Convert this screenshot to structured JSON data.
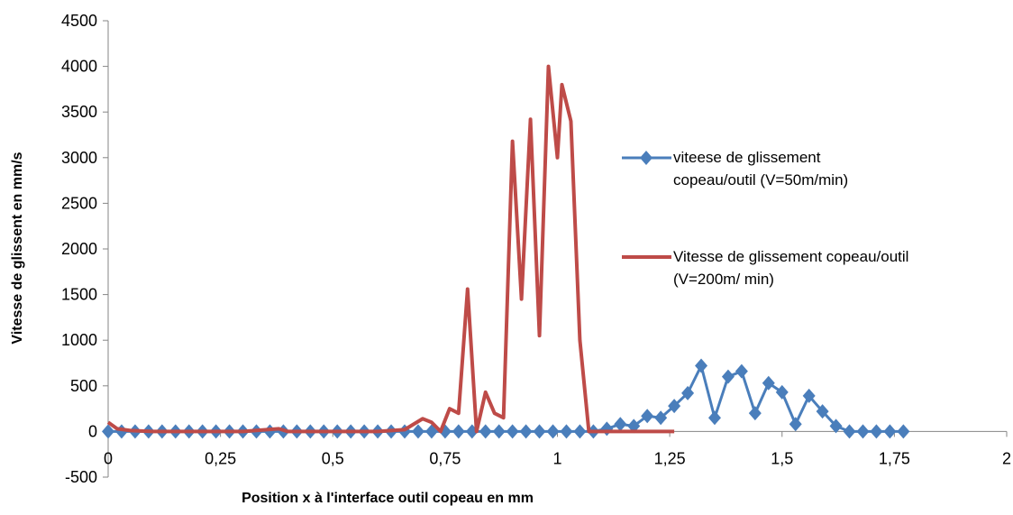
{
  "chart_data": {
    "type": "line",
    "xlabel": "Position x à l'interface outil copeau en mm",
    "ylabel": "Vitesse de glissent en mm/s",
    "xlim": [
      0,
      2
    ],
    "xticks": [
      0,
      {
        "value": 0.25,
        "label": "0,25"
      },
      {
        "value": 0.5,
        "label": "0,5"
      },
      {
        "value": 0.75,
        "label": "0,75"
      },
      1,
      {
        "value": 1.25,
        "label": "1,25"
      },
      {
        "value": 1.5,
        "label": "1,5"
      },
      {
        "value": 1.75,
        "label": "1,75"
      },
      2
    ],
    "ylim": [
      -500,
      4500
    ],
    "yticks": [
      -500,
      0,
      500,
      1000,
      1500,
      2000,
      2500,
      3000,
      3500,
      4000,
      4500
    ],
    "legend": "right",
    "series": [
      {
        "name": "viteese de glissement copeau/outil (V=50m/min)",
        "color": "#4a7ebb",
        "marker": "diamond",
        "x": [
          0,
          0.03,
          0.06,
          0.09,
          0.12,
          0.15,
          0.18,
          0.21,
          0.24,
          0.27,
          0.3,
          0.33,
          0.36,
          0.39,
          0.42,
          0.45,
          0.48,
          0.51,
          0.54,
          0.57,
          0.6,
          0.63,
          0.66,
          0.69,
          0.72,
          0.75,
          0.78,
          0.81,
          0.84,
          0.87,
          0.9,
          0.93,
          0.96,
          0.99,
          1.02,
          1.05,
          1.08,
          1.11,
          1.14,
          1.17,
          1.2,
          1.23,
          1.26,
          1.29,
          1.32,
          1.35,
          1.38,
          1.41,
          1.44,
          1.47,
          1.5,
          1.53,
          1.56,
          1.59,
          1.62,
          1.65,
          1.68,
          1.71,
          1.74,
          1.77
        ],
        "values": [
          0,
          0,
          0,
          0,
          0,
          0,
          0,
          0,
          0,
          0,
          0,
          0,
          0,
          0,
          0,
          0,
          0,
          0,
          0,
          0,
          0,
          0,
          0,
          0,
          0,
          0,
          0,
          0,
          0,
          0,
          0,
          0,
          0,
          0,
          0,
          0,
          0,
          30,
          80,
          60,
          170,
          150,
          280,
          420,
          720,
          150,
          600,
          660,
          200,
          530,
          430,
          80,
          390,
          220,
          60,
          0,
          0,
          0,
          0,
          0
        ]
      },
      {
        "name": "Vitesse de glissement copeau/outil (V=200m/ min)",
        "color": "#be4b48",
        "marker": "none",
        "x": [
          0,
          0.02,
          0.05,
          0.1,
          0.2,
          0.3,
          0.38,
          0.4,
          0.5,
          0.6,
          0.66,
          0.7,
          0.72,
          0.74,
          0.76,
          0.78,
          0.8,
          0.82,
          0.84,
          0.86,
          0.88,
          0.9,
          0.92,
          0.94,
          0.96,
          0.98,
          1.0,
          1.01,
          1.03,
          1.05,
          1.07,
          1.1,
          1.2,
          1.26
        ],
        "values": [
          100,
          30,
          10,
          0,
          0,
          0,
          30,
          0,
          0,
          0,
          20,
          140,
          100,
          0,
          250,
          200,
          1560,
          0,
          430,
          200,
          150,
          3180,
          1450,
          3420,
          1050,
          4000,
          3000,
          3800,
          3400,
          1000,
          0,
          0,
          0,
          0
        ]
      }
    ]
  }
}
